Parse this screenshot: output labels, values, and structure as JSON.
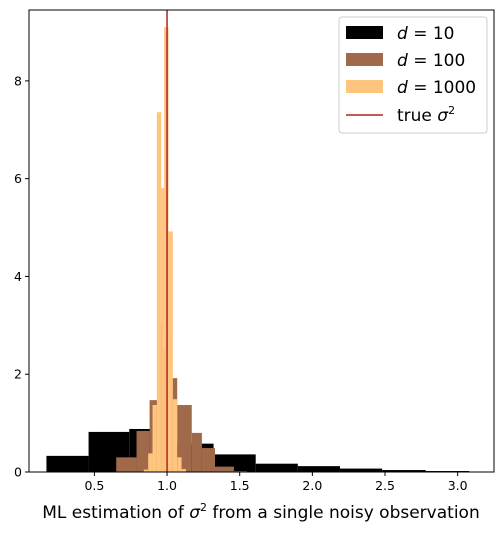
{
  "chart_data": {
    "type": "bar",
    "xlabel_prefix": "ML estimation of ",
    "xlabel_symbol": "σ",
    "xlabel_exp": "2",
    "xlabel_suffix": " from a single noisy observation",
    "ylabel": "",
    "xlim": [
      0.05,
      3.25
    ],
    "ylim": [
      0,
      9.45
    ],
    "x_ticks": [
      0.5,
      1.0,
      1.5,
      2.0,
      2.5,
      3.0
    ],
    "x_tick_labels": [
      "0.5",
      "1.0",
      "1.5",
      "2.0",
      "2.5",
      "3.0"
    ],
    "y_ticks": [
      0,
      2,
      4,
      6,
      8
    ],
    "y_tick_labels": [
      "0",
      "2",
      "4",
      "6",
      "8"
    ],
    "true_value": 1.0,
    "series": [
      {
        "name_prefix": "d",
        "name_suffix": " = 10",
        "color": "#000000",
        "bins": [
          [
            0.17,
            0.46,
            0.33
          ],
          [
            0.46,
            0.74,
            0.82
          ],
          [
            0.74,
            1.03,
            0.88
          ],
          [
            1.03,
            1.32,
            0.58
          ],
          [
            1.32,
            1.61,
            0.36
          ],
          [
            1.61,
            1.9,
            0.17
          ],
          [
            1.9,
            2.19,
            0.12
          ],
          [
            2.19,
            2.48,
            0.07
          ],
          [
            2.48,
            2.78,
            0.04
          ],
          [
            2.78,
            3.08,
            0.02
          ]
        ]
      },
      {
        "name_prefix": "d",
        "name_suffix": " = 100",
        "color": "#a0694a",
        "bins": [
          [
            0.5,
            0.65,
            0.01
          ],
          [
            0.65,
            0.79,
            0.3
          ],
          [
            0.79,
            0.88,
            0.84
          ],
          [
            0.88,
            0.94,
            1.47
          ],
          [
            0.94,
            0.97,
            3.02
          ],
          [
            0.97,
            1.02,
            2.52
          ],
          [
            1.02,
            1.07,
            1.92
          ],
          [
            1.07,
            1.17,
            1.37
          ],
          [
            1.17,
            1.24,
            0.8
          ],
          [
            1.24,
            1.33,
            0.49
          ],
          [
            1.33,
            1.46,
            0.11
          ],
          [
            1.46,
            1.55,
            0.02
          ]
        ]
      },
      {
        "name_prefix": "d",
        "name_suffix": " = 1000",
        "color": "#ffc57f",
        "bins": [
          [
            0.84,
            0.87,
            0.05
          ],
          [
            0.87,
            0.9,
            0.38
          ],
          [
            0.9,
            0.93,
            1.37
          ],
          [
            0.93,
            0.96,
            7.36
          ],
          [
            0.96,
            0.98,
            5.81
          ],
          [
            0.98,
            1.01,
            9.1
          ],
          [
            1.01,
            1.04,
            4.92
          ],
          [
            1.04,
            1.07,
            1.49
          ],
          [
            1.07,
            1.1,
            0.3
          ],
          [
            1.1,
            1.13,
            0.06
          ]
        ]
      }
    ],
    "true_line": {
      "name_prefix": "true ",
      "name_symbol": "σ",
      "name_exp": "2",
      "color": "#b22222"
    },
    "legend_position": "top-right",
    "grid": false
  }
}
